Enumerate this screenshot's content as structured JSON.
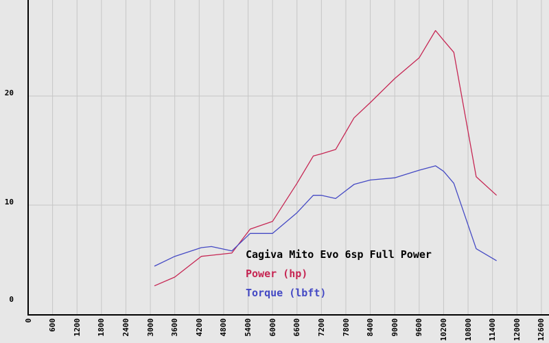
{
  "chart_data": {
    "type": "line",
    "title": "Cagiva Mito Evo 6sp Full Power",
    "x": [
      3100,
      3600,
      4250,
      4500,
      5000,
      5450,
      6000,
      6600,
      7000,
      7200,
      7550,
      8000,
      8400,
      9000,
      9600,
      10000,
      10200,
      10450,
      11000,
      11500
    ],
    "series": [
      {
        "name": "Power (hp)",
        "color": "#c62653",
        "values": [
          2.6,
          3.4,
          5.3,
          5.4,
          5.6,
          7.8,
          8.5,
          12.0,
          14.5,
          14.7,
          15.1,
          18.0,
          19.4,
          21.6,
          23.5,
          26.0,
          25.1,
          24.0,
          12.6,
          10.9
        ]
      },
      {
        "name": "Torque (lbft)",
        "color": "#4449c4",
        "values": [
          4.4,
          5.3,
          6.1,
          6.2,
          5.8,
          7.4,
          7.4,
          9.3,
          10.9,
          10.9,
          10.6,
          11.9,
          12.3,
          12.5,
          13.2,
          13.6,
          13.1,
          12.0,
          6.0,
          4.9
        ]
      }
    ],
    "xlabel": "",
    "ylabel": "",
    "xlim": [
      0,
      12787
    ],
    "ylim": [
      0,
      28.8
    ],
    "x_ticks": [
      0,
      600,
      1200,
      1800,
      2400,
      3000,
      3600,
      4200,
      4800,
      5400,
      6000,
      6600,
      7200,
      7800,
      8400,
      9000,
      9600,
      10200,
      10800,
      11400,
      12000,
      12600
    ],
    "y_ticks": [
      0,
      10,
      20
    ],
    "grid": true,
    "legend_position": "inside-bottom-center",
    "x_tick_rotation": -90
  },
  "colors": {
    "background": "#e7e7e7",
    "grid": "#c6c6c6",
    "axis": "#000000",
    "power": "#c62653",
    "torque": "#4449c4",
    "title_text": "#000000"
  }
}
